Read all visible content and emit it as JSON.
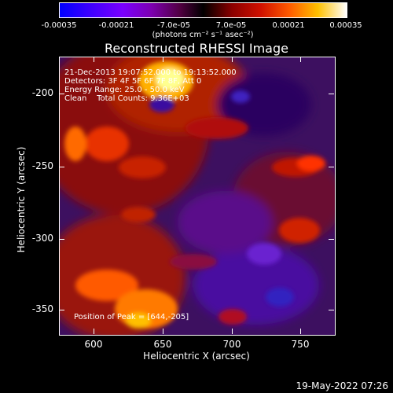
{
  "colorbar": {
    "ticks": [
      "-0.00035",
      "-0.00021",
      "-7.0e-05",
      "7.0e-05",
      "0.00021",
      "0.00035"
    ],
    "units": "(photons cm⁻² s⁻¹ asec⁻²)"
  },
  "title": "Reconstructed RHESSI Image",
  "info": {
    "line1": "21-Dec-2013 19:07:52.000 to 19:13:52.000",
    "line2": "Detectors: 3F 4F 5F 6F 7F 8F, Att 0",
    "line3": "Energy Range: 25.0 - 50.0 keV",
    "line4": "Clean    Total Counts: 9.36E+03",
    "peak": "Position of Peak = [644,-205]"
  },
  "axes": {
    "xlabel": "Heliocentric X (arcsec)",
    "ylabel": "Heliocentric Y (arcsec)",
    "xticks": [
      "600",
      "650",
      "700",
      "750"
    ],
    "yticks": [
      "-200",
      "-250",
      "-300",
      "-350"
    ]
  },
  "timestamp": "19-May-2022 07:26"
}
